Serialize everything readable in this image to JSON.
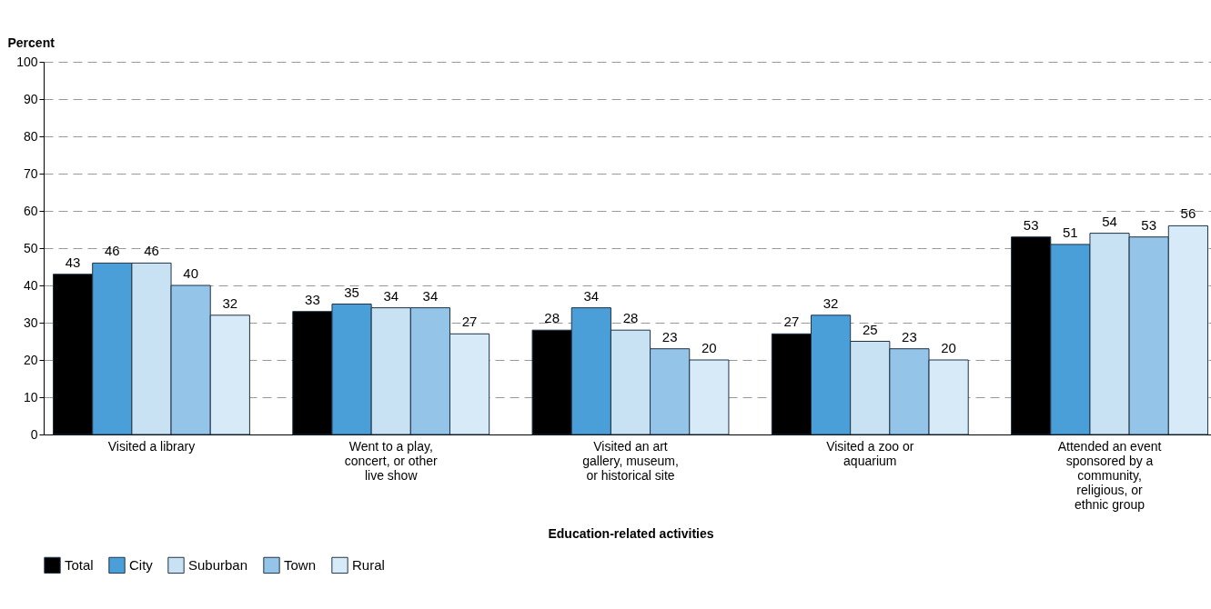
{
  "chart_data": {
    "type": "bar",
    "ylabel": "Percent",
    "xlabel": "Education-related activities",
    "categories": [
      "Visited a library",
      "Went to a play, concert, or other live show",
      "Visited an art gallery, museum, or historical site",
      "Visited a zoo or aquarium",
      "Attended an event sponsored by a community, religious, or ethnic group"
    ],
    "series": [
      {
        "name": "Total",
        "color": "#000000",
        "values": [
          43,
          33,
          28,
          27,
          53
        ]
      },
      {
        "name": "City",
        "color": "#4a9fd8",
        "values": [
          46,
          35,
          34,
          32,
          51
        ]
      },
      {
        "name": "Suburban",
        "color": "#c8e2f4",
        "values": [
          46,
          34,
          28,
          25,
          54
        ]
      },
      {
        "name": "Town",
        "color": "#94c4e8",
        "values": [
          40,
          34,
          23,
          23,
          53
        ]
      },
      {
        "name": "Rural",
        "color": "#d6eaf7",
        "values": [
          32,
          27,
          20,
          20,
          56
        ]
      }
    ],
    "ylim": [
      0,
      100
    ],
    "yticks": [
      0,
      10,
      20,
      30,
      40,
      50,
      60,
      70,
      80,
      90,
      100
    ],
    "grid": "y",
    "legend": "bottom",
    "data_labels": true
  }
}
